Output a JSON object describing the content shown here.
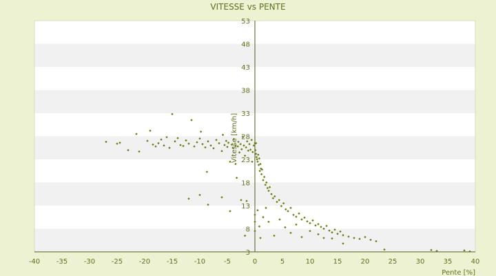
{
  "chart_data": {
    "type": "scatter",
    "title": "VITESSE vs PENTE",
    "xlabel": "Pente [%]",
    "ylabel": "Vitesse [km/h]",
    "xlim": [
      -40,
      40
    ],
    "ylim": [
      3,
      53
    ],
    "x_ticks": [
      -40,
      -35,
      -30,
      -25,
      -20,
      -15,
      -10,
      -5,
      0,
      5,
      10,
      15,
      20,
      25,
      30,
      35,
      40
    ],
    "y_ticks": [
      3,
      8,
      13,
      18,
      23,
      28,
      33,
      38,
      43,
      48,
      53
    ],
    "grid": "horizontal bands",
    "marker_color": "#6b7a12",
    "band_colors": [
      "#ffffff",
      "#f1f1f1"
    ],
    "points": [
      [
        -27,
        26.8
      ],
      [
        -25,
        26.4
      ],
      [
        -24.5,
        26.6
      ],
      [
        -23,
        25.0
      ],
      [
        -21.5,
        28.5
      ],
      [
        -21,
        24.7
      ],
      [
        -19.5,
        27.0
      ],
      [
        -19,
        29.2
      ],
      [
        -18.5,
        26.2
      ],
      [
        -18,
        25.8
      ],
      [
        -17.5,
        26.5
      ],
      [
        -17,
        27.3
      ],
      [
        -16.5,
        26.0
      ],
      [
        -16,
        27.8
      ],
      [
        -15.5,
        25.5
      ],
      [
        -15,
        32.8
      ],
      [
        -14.5,
        26.9
      ],
      [
        -14,
        27.6
      ],
      [
        -13.5,
        26.1
      ],
      [
        -13,
        25.9
      ],
      [
        -12.5,
        27.1
      ],
      [
        -12,
        26.4
      ],
      [
        -11.5,
        31.5
      ],
      [
        -11,
        25.8
      ],
      [
        -10.5,
        26.7
      ],
      [
        -10,
        27.5
      ],
      [
        -9.8,
        29.0
      ],
      [
        -9.5,
        26.3
      ],
      [
        -9,
        25.6
      ],
      [
        -8.7,
        20.3
      ],
      [
        -8.5,
        26.9
      ],
      [
        -8,
        26.0
      ],
      [
        -7.5,
        25.4
      ],
      [
        -7,
        27.2
      ],
      [
        -6.5,
        26.5
      ],
      [
        -6,
        24.8
      ],
      [
        -5.8,
        28.3
      ],
      [
        -5.5,
        26.1
      ],
      [
        -5.2,
        27.0
      ],
      [
        -5,
        25.7
      ],
      [
        -4.8,
        26.6
      ],
      [
        -4.5,
        22.5
      ],
      [
        -4.2,
        26.2
      ],
      [
        -4,
        25.5
      ],
      [
        -3.8,
        27.4
      ],
      [
        -3.5,
        26.0
      ],
      [
        -3.3,
        19.0
      ],
      [
        -3.1,
        25.8
      ],
      [
        -3,
        26.8
      ],
      [
        -2.8,
        24.5
      ],
      [
        -2.6,
        26.3
      ],
      [
        -2.4,
        25.2
      ],
      [
        -2.2,
        27.9
      ],
      [
        -2,
        26.0
      ],
      [
        -1.8,
        23.8
      ],
      [
        -1.6,
        25.6
      ],
      [
        -1.4,
        26.9
      ],
      [
        -1.2,
        24.9
      ],
      [
        -1,
        26.3
      ],
      [
        -0.8,
        25.1
      ],
      [
        -0.6,
        27.2
      ],
      [
        -0.4,
        24.6
      ],
      [
        -0.2,
        26.0
      ],
      [
        -12,
        14.5
      ],
      [
        -10,
        15.3
      ],
      [
        -8.5,
        13.2
      ],
      [
        -6,
        14.8
      ],
      [
        -4.5,
        11.8
      ],
      [
        -3.5,
        22.0
      ],
      [
        -2.5,
        14.2
      ],
      [
        -1.8,
        6.5
      ],
      [
        0,
        26.5
      ],
      [
        0.1,
        25.0
      ],
      [
        0.2,
        24.2
      ],
      [
        0.3,
        23.5
      ],
      [
        0.4,
        23.0
      ],
      [
        0.5,
        22.5
      ],
      [
        0.6,
        24.0
      ],
      [
        0.7,
        21.8
      ],
      [
        0.8,
        23.2
      ],
      [
        0.9,
        20.5
      ],
      [
        1,
        22.0
      ],
      [
        1.1,
        21.0
      ],
      [
        1.2,
        19.8
      ],
      [
        1.3,
        20.8
      ],
      [
        1.5,
        18.5
      ],
      [
        1.7,
        19.2
      ],
      [
        1.9,
        17.5
      ],
      [
        2.1,
        18.0
      ],
      [
        2.3,
        16.8
      ],
      [
        2.5,
        16.2
      ],
      [
        2.7,
        17.0
      ],
      [
        3,
        15.5
      ],
      [
        3.3,
        14.6
      ],
      [
        3.6,
        15.0
      ],
      [
        4,
        13.8
      ],
      [
        4.4,
        14.2
      ],
      [
        4.8,
        12.9
      ],
      [
        5.2,
        13.5
      ],
      [
        5.6,
        12.2
      ],
      [
        6,
        11.8
      ],
      [
        6.5,
        12.5
      ],
      [
        7,
        11.0
      ],
      [
        7.5,
        10.6
      ],
      [
        8,
        11.3
      ],
      [
        8.5,
        10.0
      ],
      [
        9,
        10.4
      ],
      [
        9.5,
        9.6
      ],
      [
        10,
        9.2
      ],
      [
        10.5,
        9.8
      ],
      [
        11,
        8.7
      ],
      [
        11.5,
        9.0
      ],
      [
        12,
        8.4
      ],
      [
        12.5,
        8.0
      ],
      [
        13,
        8.6
      ],
      [
        13.5,
        7.6
      ],
      [
        14,
        7.2
      ],
      [
        14.5,
        7.8
      ],
      [
        15,
        6.9
      ],
      [
        15.5,
        7.4
      ],
      [
        16,
        6.6
      ],
      [
        17,
        6.3
      ],
      [
        18,
        6.0
      ],
      [
        19,
        5.8
      ],
      [
        20,
        6.2
      ],
      [
        21,
        5.6
      ],
      [
        22,
        5.3
      ],
      [
        23.5,
        3.5
      ],
      [
        32,
        3.4
      ],
      [
        33,
        3.2
      ],
      [
        38,
        3.3
      ],
      [
        39,
        3.1
      ],
      [
        0.5,
        12.0
      ],
      [
        0.8,
        8.5
      ],
      [
        1.0,
        6.0
      ],
      [
        1.5,
        10.5
      ],
      [
        2,
        12.5
      ],
      [
        2.5,
        9.5
      ],
      [
        3.5,
        6.5
      ],
      [
        4.5,
        10.0
      ],
      [
        5.5,
        8.3
      ],
      [
        6.5,
        7.1
      ],
      [
        7.5,
        8.9
      ],
      [
        8.5,
        6.2
      ],
      [
        10,
        7.5
      ],
      [
        11.5,
        6.8
      ],
      [
        12.5,
        6.0
      ],
      [
        14,
        5.9
      ],
      [
        16,
        4.8
      ],
      [
        0.0,
        7.5
      ],
      [
        0.0,
        9.5
      ],
      [
        0.0,
        11.0
      ],
      [
        -1.5,
        14.0
      ],
      [
        -0.5,
        22.5
      ],
      [
        0.2,
        26.5
      ]
    ]
  }
}
